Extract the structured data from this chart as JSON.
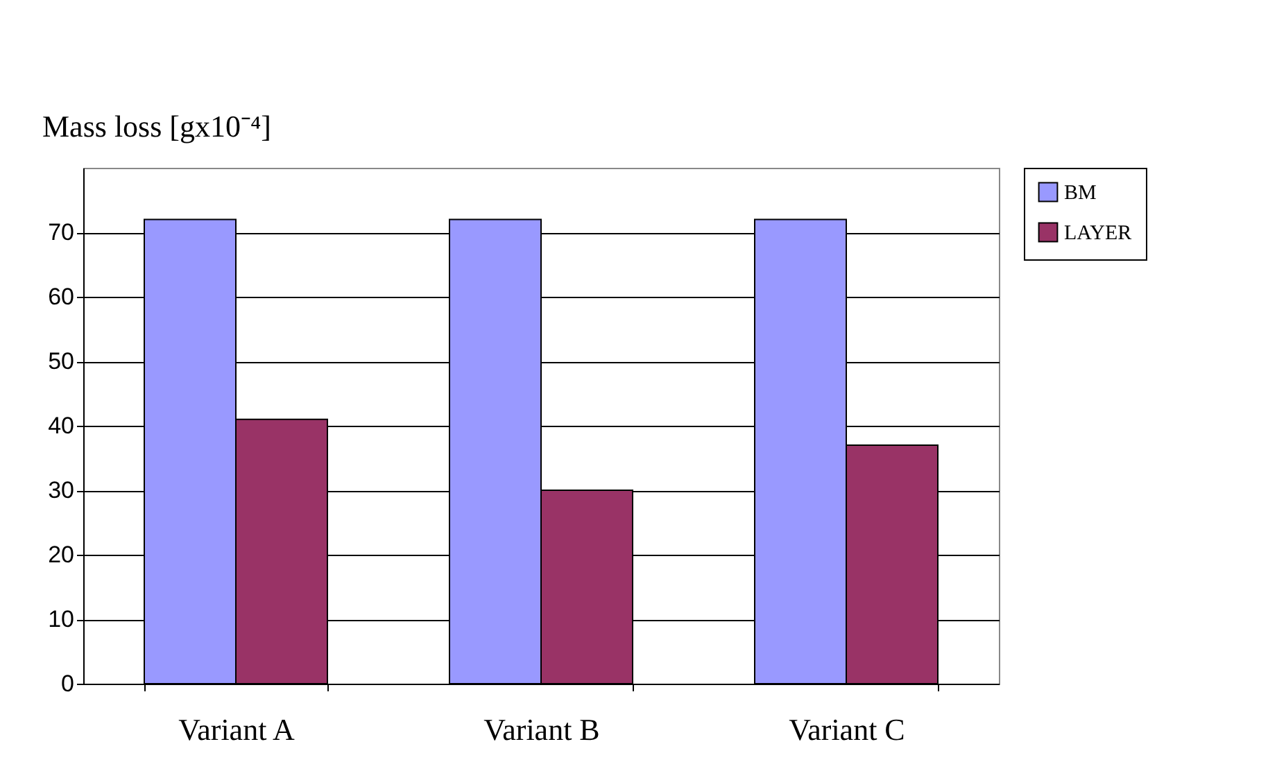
{
  "chart_data": {
    "type": "bar",
    "ylabel": "Mass loss [gx10⁻⁴]",
    "categories": [
      "Variant A",
      "Variant B",
      "Variant C"
    ],
    "series": [
      {
        "name": "BM",
        "color": "#9999ff",
        "values": [
          72,
          72,
          72
        ]
      },
      {
        "name": "LAYER",
        "color": "#993366",
        "values": [
          41,
          30,
          37
        ]
      }
    ],
    "ylim": [
      0,
      80
    ],
    "yticks": [
      0,
      10,
      20,
      30,
      40,
      50,
      60,
      70
    ],
    "grid": "y",
    "legend": "right"
  }
}
